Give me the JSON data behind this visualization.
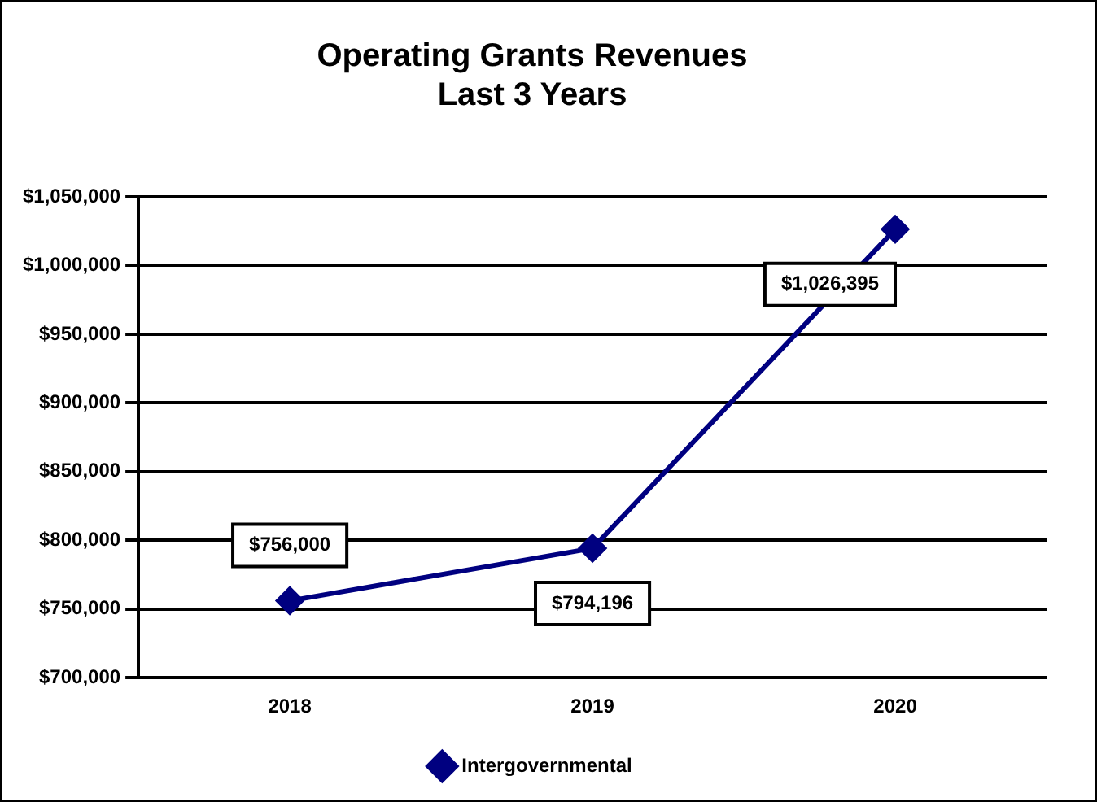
{
  "chart_data": {
    "type": "line",
    "title": "Operating Grants Revenues\nLast 3 Years",
    "categories": [
      "2018",
      "2019",
      "2020"
    ],
    "series": [
      {
        "name": "Intergovernmental",
        "color": "#000080",
        "values": [
          756000,
          794196,
          1026395
        ],
        "value_labels": [
          "$756,000",
          "$794,196",
          "$1,026,395"
        ]
      }
    ],
    "ylim": [
      700000,
      1050000
    ],
    "yticks": [
      {
        "value": 700000,
        "label": "$700,000"
      },
      {
        "value": 750000,
        "label": "$750,000"
      },
      {
        "value": 800000,
        "label": "$800,000"
      },
      {
        "value": 850000,
        "label": "$850,000"
      },
      {
        "value": 900000,
        "label": "$900,000"
      },
      {
        "value": 950000,
        "label": "$950,000"
      },
      {
        "value": 1000000,
        "label": "$1,000,000"
      },
      {
        "value": 1050000,
        "label": "$1,050,000"
      }
    ],
    "grid": "y",
    "legend": "bottom",
    "marker": "diamond"
  }
}
